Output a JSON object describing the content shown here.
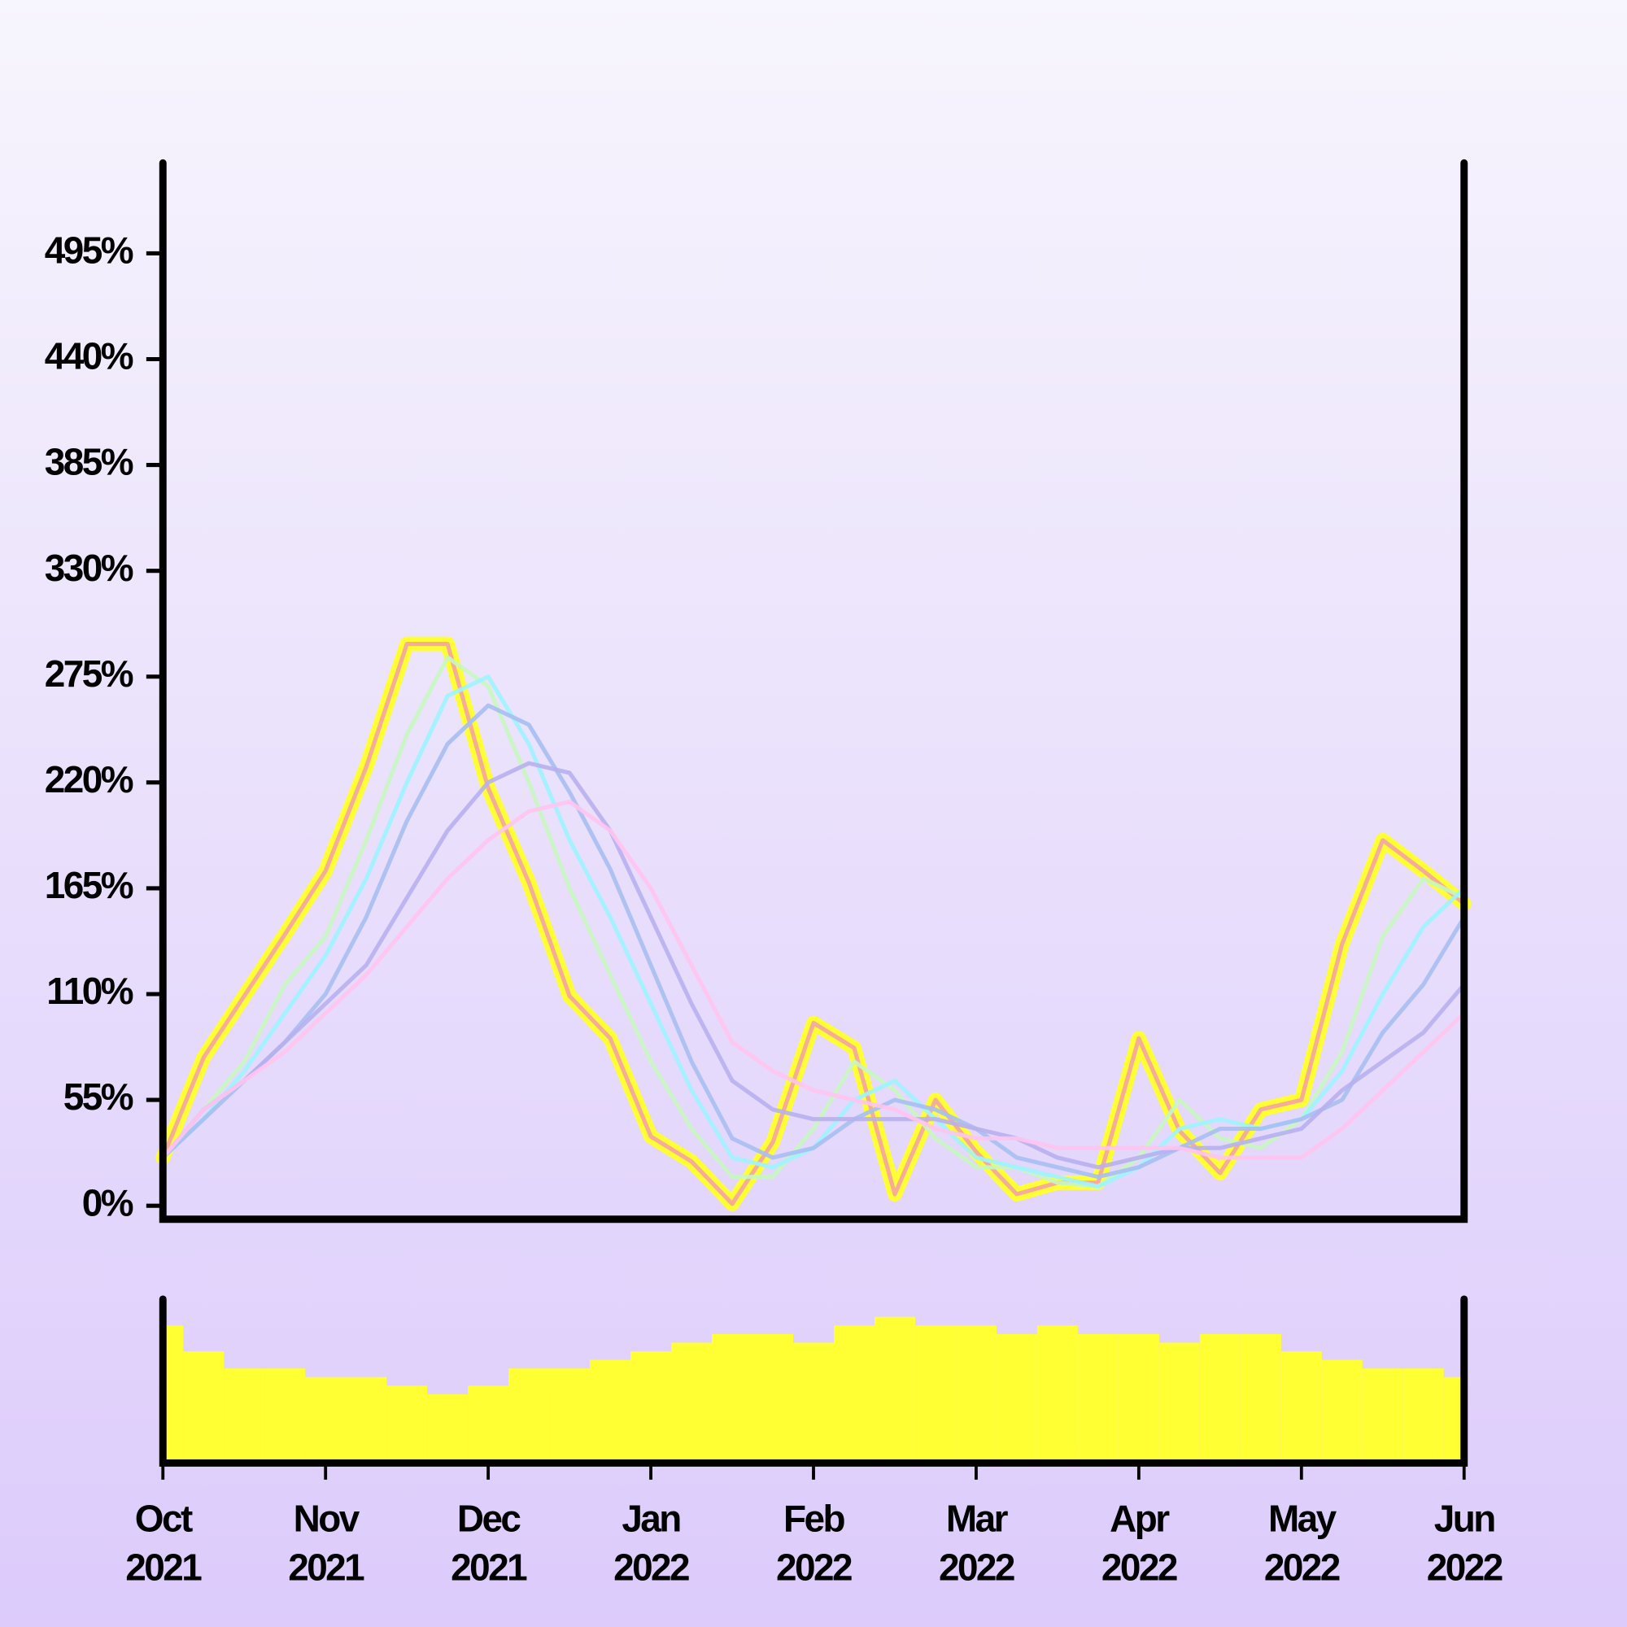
{
  "chart_data": [
    {
      "type": "line",
      "ylim": [
        -7,
        542
      ],
      "yticks": [
        {
          "value": 0,
          "label": "0%"
        },
        {
          "value": 55,
          "label": "55%"
        },
        {
          "value": 110,
          "label": "110%"
        },
        {
          "value": 165,
          "label": "165%"
        },
        {
          "value": 220,
          "label": "220%"
        },
        {
          "value": 275,
          "label": "275%"
        },
        {
          "value": 330,
          "label": "330%"
        },
        {
          "value": 385,
          "label": "385%"
        },
        {
          "value": 440,
          "label": "440%"
        },
        {
          "value": 495,
          "label": "495%"
        }
      ],
      "series": [
        {
          "color": "#ffff33",
          "values": [
            25,
            77,
            109,
            141,
            174,
            228,
            292,
            292,
            217,
            168,
            109,
            87,
            36,
            23,
            1,
            33,
            95,
            82,
            6,
            55,
            28,
            6,
            12,
            12,
            87,
            39,
            17,
            50,
            55,
            136,
            190,
            174,
            157
          ]
        },
        {
          "color": "#f5a3a3",
          "values": [
            25,
            77,
            109,
            141,
            174,
            228,
            292,
            292,
            217,
            168,
            109,
            87,
            36,
            23,
            1,
            33,
            95,
            82,
            6,
            55,
            28,
            6,
            12,
            12,
            87,
            39,
            17,
            50,
            55,
            136,
            190,
            174,
            157
          ]
        },
        {
          "color": "#c8f7c0",
          "values": [
            25,
            50,
            75,
            115,
            140,
            190,
            245,
            285,
            270,
            220,
            165,
            120,
            75,
            40,
            15,
            15,
            40,
            75,
            60,
            35,
            20,
            20,
            12,
            10,
            25,
            55,
            35,
            30,
            45,
            80,
            140,
            170,
            160
          ]
        },
        {
          "color": "#9ef3ff",
          "values": [
            25,
            45,
            70,
            100,
            130,
            170,
            220,
            265,
            275,
            240,
            190,
            150,
            105,
            60,
            25,
            20,
            30,
            55,
            65,
            45,
            25,
            20,
            15,
            10,
            20,
            40,
            45,
            40,
            45,
            70,
            110,
            145,
            165
          ]
        },
        {
          "color": "#a6bff2",
          "values": [
            25,
            45,
            65,
            85,
            110,
            150,
            200,
            240,
            260,
            250,
            215,
            175,
            125,
            75,
            35,
            25,
            30,
            45,
            55,
            50,
            40,
            25,
            20,
            15,
            20,
            30,
            40,
            40,
            45,
            55,
            90,
            115,
            150
          ]
        },
        {
          "color": "#b7b0f0",
          "values": [
            25,
            50,
            65,
            85,
            105,
            125,
            160,
            195,
            220,
            230,
            225,
            195,
            150,
            105,
            65,
            50,
            45,
            45,
            45,
            45,
            40,
            35,
            25,
            20,
            25,
            30,
            30,
            35,
            40,
            60,
            75,
            90,
            115
          ]
        },
        {
          "color": "#ffc4f0",
          "values": [
            25,
            50,
            65,
            80,
            100,
            120,
            145,
            170,
            190,
            205,
            210,
            195,
            165,
            125,
            85,
            70,
            60,
            55,
            50,
            40,
            35,
            35,
            30,
            30,
            30,
            30,
            25,
            25,
            25,
            40,
            60,
            80,
            100
          ]
        }
      ]
    },
    {
      "type": "bar",
      "color": "#ffff33",
      "categories": [
        "Oct 2021",
        null,
        null,
        null,
        "Nov 2021",
        null,
        null,
        null,
        "Dec 2021",
        null,
        null,
        null,
        "Jan 2022",
        null,
        null,
        null,
        "Feb 2022",
        null,
        null,
        null,
        "Mar 2022",
        null,
        null,
        null,
        "Apr 2022",
        null,
        null,
        null,
        "May 2022",
        null,
        null,
        null,
        "Jun 2022"
      ],
      "values": [
        80,
        65,
        55,
        55,
        50,
        50,
        45,
        40,
        45,
        55,
        55,
        60,
        65,
        70,
        75,
        75,
        70,
        80,
        85,
        80,
        80,
        75,
        80,
        75,
        75,
        70,
        75,
        75,
        65,
        60,
        55,
        55,
        50
      ]
    }
  ]
}
